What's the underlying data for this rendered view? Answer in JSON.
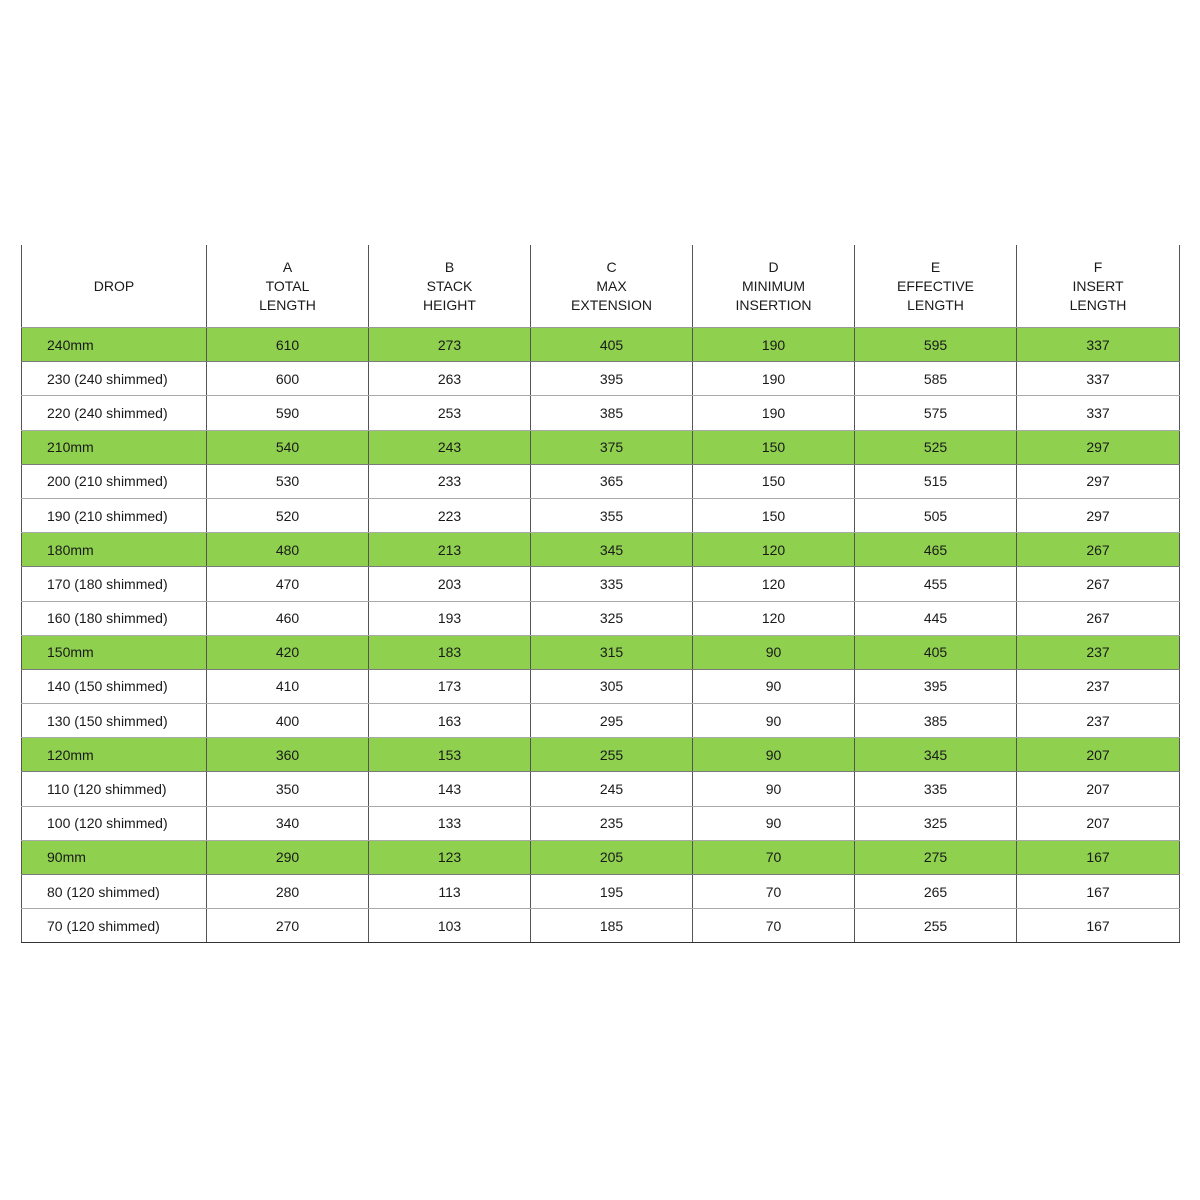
{
  "table": {
    "header": [
      [
        "DROP"
      ],
      [
        "A",
        "TOTAL",
        "LENGTH"
      ],
      [
        "B",
        "STACK",
        "HEIGHT"
      ],
      [
        "C",
        "MAX",
        "EXTENSION"
      ],
      [
        "D",
        "MINIMUM",
        "INSERTION"
      ],
      [
        "E",
        "EFFECTIVE",
        "LENGTH"
      ],
      [
        "F",
        "INSERT",
        "LENGTH"
      ]
    ],
    "rows": [
      [
        "240mm",
        610,
        273,
        405,
        190,
        595,
        337
      ],
      [
        "230 (240 shimmed)",
        600,
        263,
        395,
        190,
        585,
        337
      ],
      [
        "220 (240 shimmed)",
        590,
        253,
        385,
        190,
        575,
        337
      ],
      [
        "210mm",
        540,
        243,
        375,
        150,
        525,
        297
      ],
      [
        "200 (210 shimmed)",
        530,
        233,
        365,
        150,
        515,
        297
      ],
      [
        "190 (210 shimmed)",
        520,
        223,
        355,
        150,
        505,
        297
      ],
      [
        "180mm",
        480,
        213,
        345,
        120,
        465,
        267
      ],
      [
        "170 (180 shimmed)",
        470,
        203,
        335,
        120,
        455,
        267
      ],
      [
        "160 (180 shimmed)",
        460,
        193,
        325,
        120,
        445,
        267
      ],
      [
        "150mm",
        420,
        183,
        315,
        90,
        405,
        237
      ],
      [
        "140 (150 shimmed)",
        410,
        173,
        305,
        90,
        395,
        237
      ],
      [
        "130 (150 shimmed)",
        400,
        163,
        295,
        90,
        385,
        237
      ],
      [
        "120mm",
        360,
        153,
        255,
        90,
        345,
        207
      ],
      [
        "110 (120 shimmed)",
        350,
        143,
        245,
        90,
        335,
        207
      ],
      [
        "100 (120 shimmed)",
        340,
        133,
        235,
        90,
        325,
        207
      ],
      [
        "90mm",
        290,
        123,
        205,
        70,
        275,
        167
      ],
      [
        "80 (120 shimmed)",
        280,
        113,
        195,
        70,
        265,
        167
      ],
      [
        "70 (120 shimmed)",
        270,
        103,
        185,
        70,
        255,
        167
      ]
    ]
  }
}
